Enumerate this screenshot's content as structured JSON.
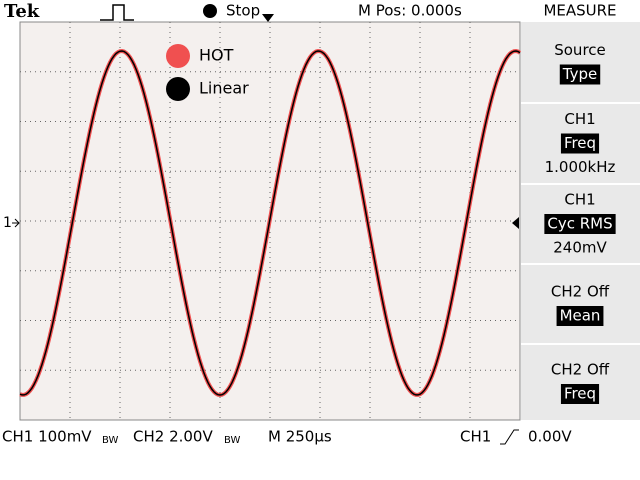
{
  "header": {
    "brand": "Tek",
    "state": "Stop",
    "position": "M Pos: 0.000s",
    "menu_title": "MEASURE"
  },
  "legend": [
    {
      "label": "HOT",
      "color": "#f05050"
    },
    {
      "label": "Linear",
      "color": "#000000"
    }
  ],
  "channel_marker": "1",
  "menu": [
    {
      "line1": "Source",
      "highlight": "Type"
    },
    {
      "line1": "CH1",
      "highlight": "Freq",
      "line3": "1.000kHz"
    },
    {
      "line1": "CH1",
      "highlight": "Cyc RMS",
      "line3": "240mV"
    },
    {
      "line1": "CH2 Off",
      "highlight": "Mean"
    },
    {
      "line1": "CH2 Off",
      "highlight": "Freq"
    }
  ],
  "status": {
    "ch1": "CH1 100mV",
    "ch1_bw": "BW",
    "ch2": "CH2 2.00V",
    "ch2_bw": "BW",
    "timebase": "M 250µs",
    "trigger_source": "CH1",
    "trigger_level": "0.00V"
  }
}
